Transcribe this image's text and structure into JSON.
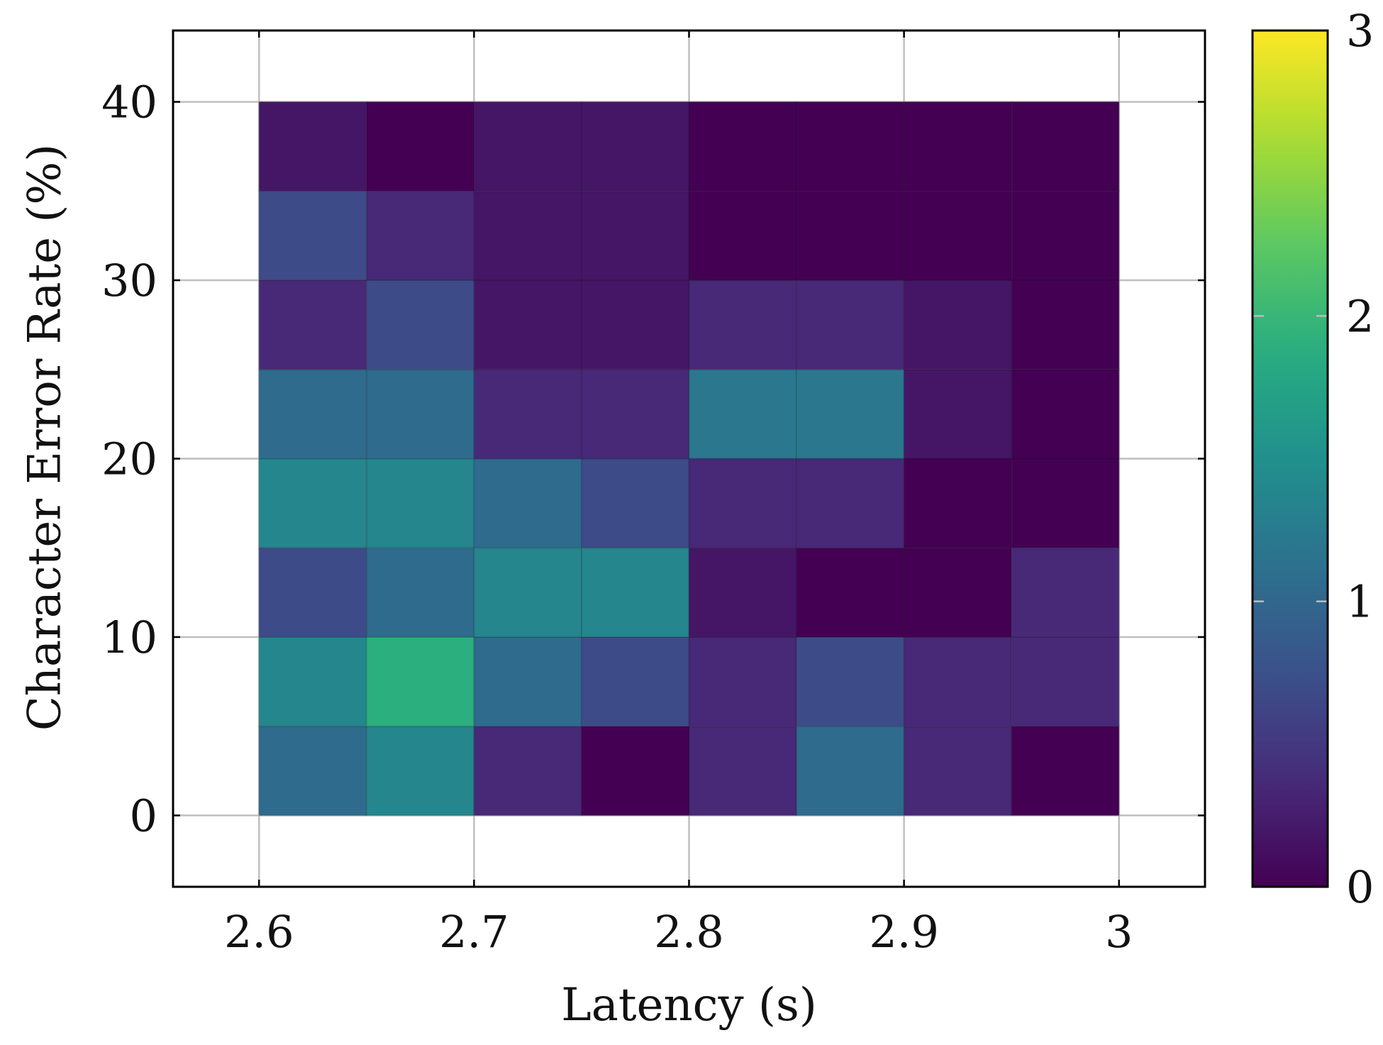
{
  "chart_data": {
    "type": "heatmap",
    "title": "",
    "xlabel": "Latency (s)",
    "ylabel": "Character Error Rate (%)",
    "xlim": [
      2.56,
      3.04
    ],
    "ylim": [
      -4,
      44
    ],
    "x_ticks": [
      2.6,
      2.7,
      2.8,
      2.9,
      3
    ],
    "x_tick_labels": [
      "2.6",
      "2.7",
      "2.8",
      "2.9",
      "3"
    ],
    "y_ticks": [
      0,
      10,
      20,
      30,
      40
    ],
    "y_tick_labels": [
      "0",
      "10",
      "20",
      "30",
      "40"
    ],
    "grid": true,
    "x_bin_edges": [
      2.6,
      2.65,
      2.7,
      2.75,
      2.8,
      2.85,
      2.9,
      2.95,
      3.0
    ],
    "y_bin_edges": [
      0,
      5,
      10,
      15,
      20,
      25,
      30,
      35,
      40
    ],
    "values": [
      [
        1.05,
        1.38,
        0.35,
        0.0,
        0.35,
        1.05,
        0.35,
        0.0
      ],
      [
        1.38,
        1.9,
        1.05,
        0.7,
        0.35,
        0.7,
        0.35,
        0.35
      ],
      [
        0.7,
        1.05,
        1.38,
        1.38,
        0.18,
        0.0,
        0.0,
        0.35
      ],
      [
        1.38,
        1.38,
        1.05,
        0.7,
        0.35,
        0.35,
        0.0,
        0.0
      ],
      [
        1.05,
        1.05,
        0.35,
        0.35,
        1.2,
        1.2,
        0.18,
        0.0
      ],
      [
        0.35,
        0.7,
        0.18,
        0.18,
        0.35,
        0.35,
        0.18,
        0.0
      ],
      [
        0.7,
        0.35,
        0.18,
        0.18,
        0.0,
        0.0,
        0.0,
        0.0
      ],
      [
        0.18,
        0.0,
        0.18,
        0.18,
        0.0,
        0.0,
        0.0,
        0.0
      ]
    ],
    "colorbar": {
      "range": [
        0,
        3
      ],
      "ticks": [
        0,
        1,
        2,
        3
      ],
      "tick_labels": [
        "0",
        "1",
        "2",
        "3"
      ],
      "colormap": "viridis"
    }
  }
}
